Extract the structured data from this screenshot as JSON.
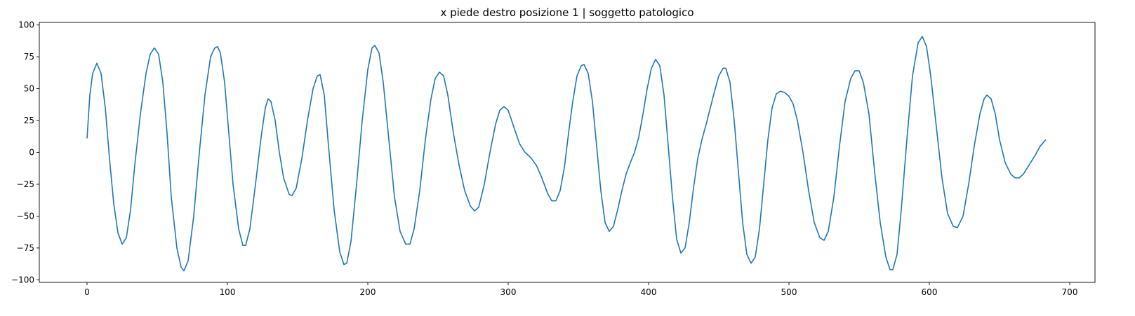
{
  "chart_data": {
    "type": "line",
    "title": "x piede destro posizione 1 | soggetto patologico",
    "xlabel": "",
    "ylabel": "",
    "xlim": [
      -34,
      718
    ],
    "ylim": [
      -102,
      102
    ],
    "xticks": [
      0,
      100,
      200,
      300,
      400,
      500,
      600,
      700
    ],
    "yticks": [
      -100,
      -75,
      -50,
      -25,
      0,
      25,
      50,
      75,
      100
    ],
    "grid": false,
    "legend": "none",
    "series": [
      {
        "color": "#1f77b4",
        "points": [
          [
            0,
            11
          ],
          [
            2,
            45
          ],
          [
            4,
            62
          ],
          [
            7,
            70
          ],
          [
            10,
            62
          ],
          [
            13,
            35
          ],
          [
            16,
            -5
          ],
          [
            19,
            -40
          ],
          [
            22,
            -63
          ],
          [
            25,
            -72
          ],
          [
            28,
            -67
          ],
          [
            31,
            -45
          ],
          [
            34,
            -10
          ],
          [
            38,
            30
          ],
          [
            42,
            62
          ],
          [
            45,
            77
          ],
          [
            48,
            82
          ],
          [
            51,
            77
          ],
          [
            54,
            55
          ],
          [
            57,
            15
          ],
          [
            60,
            -35
          ],
          [
            64,
            -75
          ],
          [
            67,
            -90
          ],
          [
            69,
            -93
          ],
          [
            72,
            -85
          ],
          [
            76,
            -50
          ],
          [
            80,
            0
          ],
          [
            84,
            45
          ],
          [
            88,
            75
          ],
          [
            91,
            82
          ],
          [
            93,
            83
          ],
          [
            95,
            78
          ],
          [
            98,
            55
          ],
          [
            101,
            15
          ],
          [
            104,
            -25
          ],
          [
            108,
            -60
          ],
          [
            111,
            -73
          ],
          [
            113,
            -73
          ],
          [
            116,
            -60
          ],
          [
            120,
            -25
          ],
          [
            124,
            12
          ],
          [
            127,
            35
          ],
          [
            129,
            42
          ],
          [
            131,
            40
          ],
          [
            134,
            25
          ],
          [
            137,
            0
          ],
          [
            140,
            -20
          ],
          [
            144,
            -33
          ],
          [
            146,
            -34
          ],
          [
            149,
            -28
          ],
          [
            153,
            -5
          ],
          [
            157,
            25
          ],
          [
            161,
            50
          ],
          [
            164,
            60
          ],
          [
            166,
            61
          ],
          [
            169,
            45
          ],
          [
            172,
            5
          ],
          [
            176,
            -45
          ],
          [
            180,
            -78
          ],
          [
            183,
            -88
          ],
          [
            185,
            -87
          ],
          [
            188,
            -70
          ],
          [
            192,
            -25
          ],
          [
            196,
            25
          ],
          [
            200,
            65
          ],
          [
            203,
            82
          ],
          [
            205,
            84
          ],
          [
            208,
            78
          ],
          [
            211,
            55
          ],
          [
            215,
            10
          ],
          [
            219,
            -35
          ],
          [
            223,
            -62
          ],
          [
            227,
            -72
          ],
          [
            230,
            -72
          ],
          [
            233,
            -60
          ],
          [
            237,
            -30
          ],
          [
            241,
            10
          ],
          [
            245,
            42
          ],
          [
            248,
            58
          ],
          [
            251,
            63
          ],
          [
            254,
            60
          ],
          [
            257,
            45
          ],
          [
            261,
            15
          ],
          [
            265,
            -10
          ],
          [
            269,
            -30
          ],
          [
            273,
            -42
          ],
          [
            276,
            -46
          ],
          [
            279,
            -43
          ],
          [
            283,
            -25
          ],
          [
            287,
            0
          ],
          [
            291,
            22
          ],
          [
            294,
            33
          ],
          [
            297,
            36
          ],
          [
            300,
            33
          ],
          [
            304,
            20
          ],
          [
            308,
            7
          ],
          [
            312,
            0
          ],
          [
            316,
            -4
          ],
          [
            320,
            -10
          ],
          [
            324,
            -20
          ],
          [
            328,
            -32
          ],
          [
            331,
            -38
          ],
          [
            334,
            -38
          ],
          [
            337,
            -30
          ],
          [
            340,
            -12
          ],
          [
            343,
            15
          ],
          [
            346,
            40
          ],
          [
            349,
            60
          ],
          [
            352,
            68
          ],
          [
            354,
            69
          ],
          [
            357,
            62
          ],
          [
            360,
            40
          ],
          [
            363,
            5
          ],
          [
            366,
            -30
          ],
          [
            369,
            -55
          ],
          [
            372,
            -62
          ],
          [
            375,
            -58
          ],
          [
            378,
            -45
          ],
          [
            381,
            -30
          ],
          [
            384,
            -17
          ],
          [
            387,
            -8
          ],
          [
            390,
            0
          ],
          [
            393,
            12
          ],
          [
            396,
            30
          ],
          [
            399,
            50
          ],
          [
            402,
            66
          ],
          [
            405,
            73
          ],
          [
            408,
            68
          ],
          [
            411,
            45
          ],
          [
            414,
            5
          ],
          [
            417,
            -35
          ],
          [
            420,
            -68
          ],
          [
            423,
            -79
          ],
          [
            426,
            -75
          ],
          [
            429,
            -55
          ],
          [
            432,
            -28
          ],
          [
            435,
            -5
          ],
          [
            438,
            10
          ],
          [
            441,
            22
          ],
          [
            444,
            35
          ],
          [
            447,
            48
          ],
          [
            450,
            60
          ],
          [
            453,
            66
          ],
          [
            455,
            66
          ],
          [
            458,
            55
          ],
          [
            461,
            25
          ],
          [
            464,
            -15
          ],
          [
            467,
            -55
          ],
          [
            470,
            -80
          ],
          [
            473,
            -87
          ],
          [
            476,
            -82
          ],
          [
            479,
            -60
          ],
          [
            482,
            -25
          ],
          [
            485,
            10
          ],
          [
            488,
            35
          ],
          [
            491,
            46
          ],
          [
            494,
            48
          ],
          [
            497,
            47
          ],
          [
            500,
            44
          ],
          [
            503,
            38
          ],
          [
            506,
            25
          ],
          [
            510,
            0
          ],
          [
            514,
            -30
          ],
          [
            518,
            -55
          ],
          [
            522,
            -67
          ],
          [
            525,
            -69
          ],
          [
            528,
            -62
          ],
          [
            532,
            -35
          ],
          [
            536,
            5
          ],
          [
            540,
            40
          ],
          [
            544,
            58
          ],
          [
            547,
            64
          ],
          [
            550,
            64
          ],
          [
            553,
            55
          ],
          [
            557,
            30
          ],
          [
            561,
            -15
          ],
          [
            565,
            -55
          ],
          [
            569,
            -82
          ],
          [
            572,
            -92
          ],
          [
            574,
            -92
          ],
          [
            577,
            -80
          ],
          [
            580,
            -45
          ],
          [
            584,
            10
          ],
          [
            588,
            60
          ],
          [
            592,
            86
          ],
          [
            595,
            91
          ],
          [
            598,
            83
          ],
          [
            601,
            60
          ],
          [
            605,
            20
          ],
          [
            609,
            -20
          ],
          [
            613,
            -48
          ],
          [
            617,
            -58
          ],
          [
            620,
            -59
          ],
          [
            624,
            -50
          ],
          [
            628,
            -25
          ],
          [
            632,
            5
          ],
          [
            636,
            30
          ],
          [
            639,
            42
          ],
          [
            641,
            45
          ],
          [
            644,
            42
          ],
          [
            647,
            30
          ],
          [
            650,
            10
          ],
          [
            654,
            -8
          ],
          [
            658,
            -17
          ],
          [
            661,
            -20
          ],
          [
            664,
            -20
          ],
          [
            667,
            -17
          ],
          [
            671,
            -10
          ],
          [
            675,
            -3
          ],
          [
            679,
            5
          ],
          [
            683,
            10
          ]
        ]
      }
    ]
  }
}
